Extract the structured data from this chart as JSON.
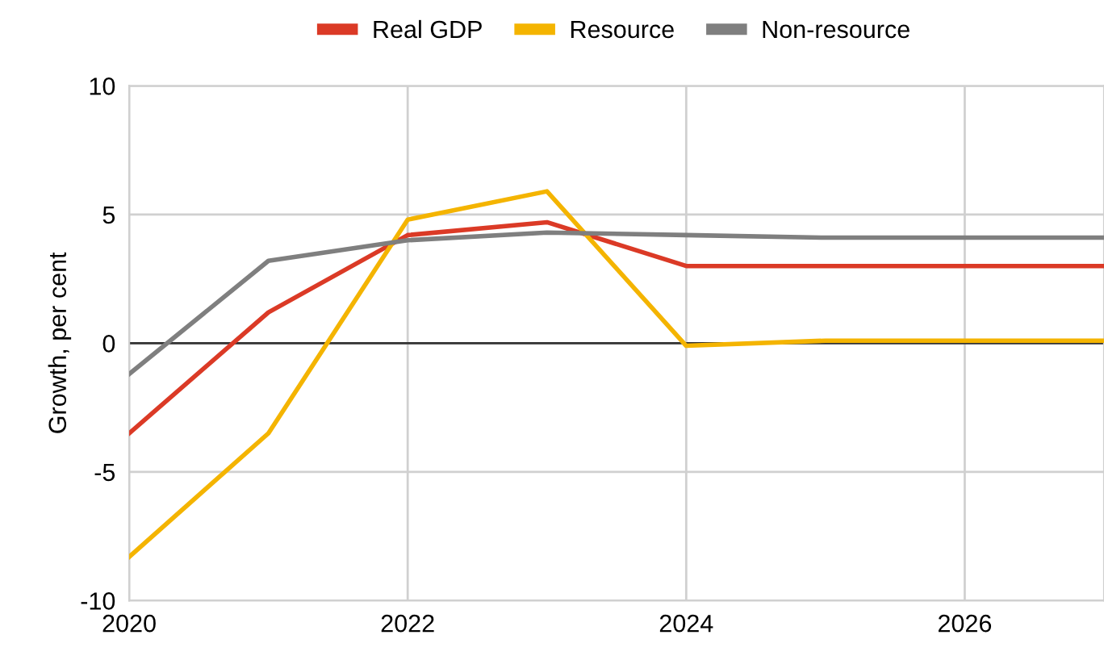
{
  "chart_data": {
    "type": "line",
    "ylabel": "Growth, per cent",
    "x": [
      2020,
      2021,
      2022,
      2023,
      2024,
      2025,
      2026,
      2027
    ],
    "series": [
      {
        "name": "Real GDP",
        "color": "#db3a26",
        "values": [
          -3.5,
          1.2,
          4.2,
          4.7,
          3.0,
          3.0,
          3.0,
          3.0
        ]
      },
      {
        "name": "Resource",
        "color": "#f4b400",
        "values": [
          -8.3,
          -3.5,
          4.8,
          5.9,
          -0.1,
          0.1,
          0.1,
          0.1
        ]
      },
      {
        "name": "Non-resource",
        "color": "#7f7f7f",
        "values": [
          -1.2,
          3.2,
          4.0,
          4.3,
          4.2,
          4.1,
          4.1,
          4.1
        ]
      }
    ],
    "xlim": [
      2020,
      2027
    ],
    "xticks": [
      2020,
      2022,
      2024,
      2026
    ],
    "ylim": [
      -10,
      10
    ],
    "yticks": [
      -10,
      -5,
      0,
      5,
      10
    ],
    "ref_lines": [
      {
        "axis": "y",
        "value": 0,
        "color": "#333333"
      }
    ],
    "grid": true,
    "legend": "top",
    "marker": "none",
    "line_style": "solid"
  }
}
